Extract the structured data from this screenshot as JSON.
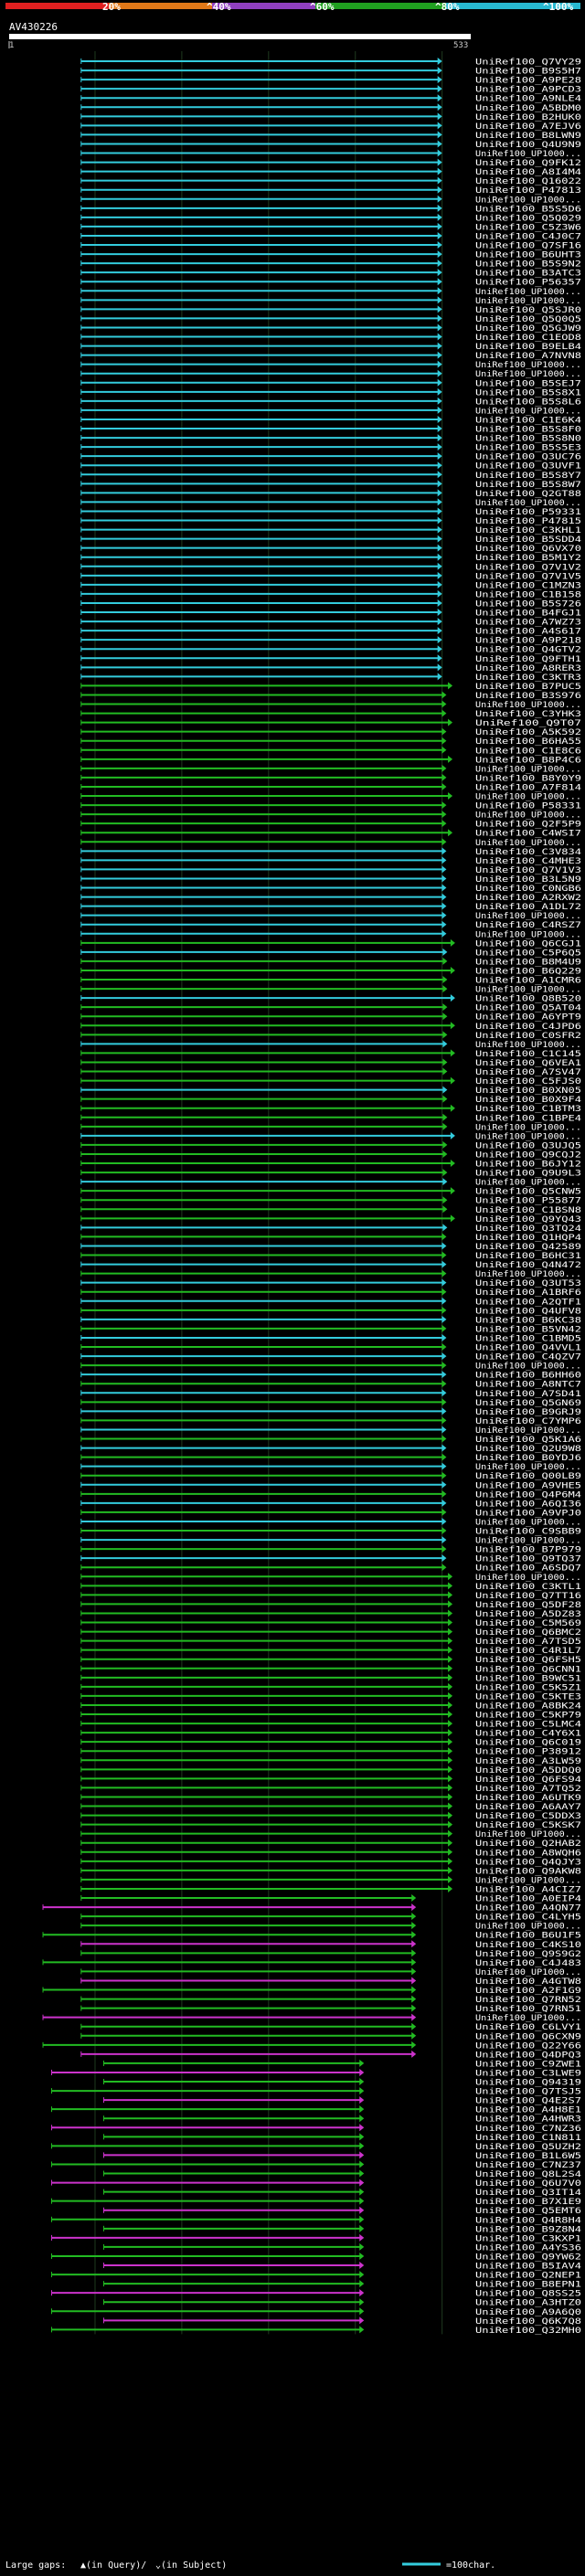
{
  "colors": {
    "bg": "#000000",
    "bin1": "#e02020",
    "bin2": "#e07818",
    "bin3": "#9040c0",
    "bin4": "#20a020",
    "bin5": "#28b8d0",
    "green": "#22bb22",
    "cyan": "#33ccdd",
    "magenta": "#cc33cc",
    "grid": "#1f3a1f",
    "text": "#ffffff",
    "tick": "#cccccc"
  },
  "chart_data": {
    "type": "alignment-overview",
    "title": "AV430226",
    "query_start": "1",
    "query_end": "533",
    "xlim": [
      1,
      533
    ],
    "identity_legend": [
      "20%",
      "^40%",
      "^60%",
      "^80%",
      "^100%"
    ],
    "footer": {
      "gaps_label": "Large gaps: ",
      "gaps_in_query": "▲(in Query)/",
      "gaps_in_subject": "⌄(in Subject)",
      "scale_label": "=100char."
    },
    "labels": [
      "UniRef100_Q7VY29",
      "UniRef100_B9S5H7",
      "UniRef100_A9PE28",
      "UniRef100_A9PCD3",
      "UniRef100_A9NLE4",
      "UniRef100_A5BDM0",
      "UniRef100_B2HUK0",
      "UniRef100_A7EJV6",
      "UniRef100_B8LWN9",
      "UniRef100_Q4U9N9",
      "UniRef100_UP1000...",
      "UniRef100_Q9FK12",
      "UniRef100_A8I4M4",
      "UniRef100_Q16022",
      "UniRef100_P47813",
      "UniRef100_UP1000...",
      "UniRef100_B5S5D6",
      "UniRef100_Q5Q029",
      "UniRef100_C5Z3W6",
      "UniRef100_C4J0C7",
      "UniRef100_Q7SF16",
      "UniRef100_B6UHT3",
      "UniRef100_B5S9N2",
      "UniRef100_B3ATC3",
      "UniRef100_P56357",
      "UniRef100_UP1000...",
      "UniRef100_UP1000...",
      "UniRef100_Q5SJR0",
      "UniRef100_Q5Q0Q5",
      "UniRef100_Q5GJW9",
      "UniRef100_C1EOD8",
      "UniRef100_B9ELB4",
      "UniRef100_A7NVN8",
      "UniRef100_UP1000...",
      "UniRef100_UP1000...",
      "UniRef100_B5SEJ7",
      "UniRef100_B5S8X1",
      "UniRef100_B5S8L6",
      "UniRef100_UP1000...",
      "UniRef100_C1E6K4",
      "UniRef100_B5S8F0",
      "UniRef100_B5S8N0",
      "UniRef100_B5S5E3",
      "UniRef100_Q3UC76",
      "UniRef100_Q3UVF1",
      "UniRef100_B5S8Y7",
      "UniRef100_B5S8W7",
      "UniRef100_Q2GT88",
      "UniRef100_UP1000...",
      "UniRef100_P59331",
      "UniRef100_P47815",
      "UniRef100_C3KHL1",
      "UniRef100_B5SDD4",
      "UniRef100_Q6VX70",
      "UniRef100_B5M1Y2",
      "UniRef100_Q7V1V2",
      "UniRef100_Q7V1V5",
      "UniRef100_C1MZN3",
      "UniRef100_C1B158",
      "UniRef100_B5S726",
      "UniRef100_B4FGJ1",
      "UniRef100_A7WZ73",
      "UniRef100_A4S617",
      "UniRef100_A9P218",
      "UniRef100_Q4GTV2",
      "UniRef100_Q9FTH1",
      "UniRef100_A8RER3",
      "UniRef100_C3KTR3",
      "UniRef100_B7PUC5",
      "UniRef100_B3S976",
      "UniRef100_UP1000...",
      "UniRef100_C3YHK3",
      "UniRef100_Q9T07",
      "UniRef100_A5K592",
      "UniRef100_B6HA55",
      "UniRef100_C1E8C6",
      "UniRef100_B8P4C6",
      "UniRef100_UP1000...",
      "UniRef100_B8Y0Y9",
      "UniRef100_A7F814",
      "UniRef100_UP1000...",
      "UniRef100_P58331",
      "UniRef100_UP1000...",
      "UniRef100_Q2F5P9",
      "UniRef100_C4WSI7",
      "UniRef100_UP1000...",
      "UniRef100_C3V834",
      "UniRef100_C4MHE3",
      "UniRef100_Q7V1V3",
      "UniRef100_B3L5N9",
      "UniRef100_C0NGB6",
      "UniRef100_A2RXW2",
      "UniRef100_A1DL72",
      "UniRef100_UP1000...",
      "UniRef100_C4RSZ7",
      "UniRef100_UP1000...",
      "UniRef100_Q6CGJ1",
      "UniRef100_C5P6Q5",
      "UniRef100_B8M4U9",
      "UniRef100_B6Q229",
      "UniRef100_A1CMR6",
      "UniRef100_UP1000...",
      "UniRef100_Q8B520",
      "UniRef100_Q5AT04",
      "UniRef100_A6YPT9",
      "UniRef100_C4JPD6",
      "UniRef100_C0SFR2",
      "UniRef100_UP1000...",
      "UniRef100_C1C145",
      "UniRef100_Q6VEA1",
      "UniRef100_A7SV47",
      "UniRef100_C5FJS0",
      "UniRef100_B0XN05",
      "UniRef100_B0X9F4",
      "UniRef100_C1BTM3",
      "UniRef100_C1BPE4",
      "UniRef100_UP1000...",
      "UniRef100_UP1000...",
      "UniRef100_Q3UJQ5",
      "UniRef100_Q9CQJ2",
      "UniRef100_B6JY12",
      "UniRef100_Q9U9L3",
      "UniRef100_UP1000...",
      "UniRef100_Q5CNW5",
      "UniRef100_P55877",
      "UniRef100_C1BSN8",
      "UniRef100_Q9YQ43",
      "UniRef100_Q3TQ24",
      "UniRef100_Q1HQP4",
      "UniRef100_Q42589",
      "UniRef100_B6HC31",
      "UniRef100_Q4N472",
      "UniRef100_UP1000...",
      "UniRef100_Q3UT53",
      "UniRef100_A1BRF6",
      "UniRef100_A2QTF1",
      "UniRef100_Q4UFV8",
      "UniRef100_B6KC38",
      "UniRef100_B5VN42",
      "UniRef100_C1BMD5",
      "UniRef100_Q4VVL1",
      "UniRef100_C4QZV7",
      "UniRef100_UP1000...",
      "UniRef100_B6HH60",
      "UniRef100_A8NTC7",
      "UniRef100_A7SD41",
      "UniRef100_Q5GN69",
      "UniRef100_B9GRJ9",
      "UniRef100_C7YMP6",
      "UniRef100_UP1000...",
      "UniRef100_Q5K1A6",
      "UniRef100_Q2U9W8",
      "UniRef100_B0YDJ6",
      "UniRef100_UP1000...",
      "UniRef100_Q00LB9",
      "UniRef100_A9VHE5",
      "UniRef100_Q4P6M4",
      "UniRef100_A6QI36",
      "UniRef100_A9VPJ0",
      "UniRef100_UP1000...",
      "UniRef100_C9SBB9",
      "UniRef100_UP1000...",
      "UniRef100_B7P979",
      "UniRef100_Q9TQ37",
      "UniRef100_A6SDQ7",
      "UniRef100_UP1000...",
      "UniRef100_C3KTL1",
      "UniRef100_Q7TT16",
      "UniRef100_Q5DF28",
      "UniRef100_A5DZ83",
      "UniRef100_C5M569",
      "UniRef100_Q6BMC2",
      "UniRef100_A7TSD5",
      "UniRef100_C4R1L7",
      "UniRef100_Q6FSH5",
      "UniRef100_Q6CNN1",
      "UniRef100_B9WC51",
      "UniRef100_C5K5Z1",
      "UniRef100_C5KTE3",
      "UniRef100_A8BK24",
      "UniRef100_C5KP79",
      "UniRef100_C5LMC4",
      "UniRef100_C4Y6X1",
      "UniRef100_Q6C019",
      "UniRef100_P38912",
      "UniRef100_A3LW59",
      "UniRef100_A5DDQ0",
      "UniRef100_Q6FS94",
      "UniRef100_A7TQ52",
      "UniRef100_A6UTK9",
      "UniRef100_A6AAY7",
      "UniRef100_C5DDX3",
      "UniRef100_C5KSK7",
      "UniRef100_UP1000...",
      "UniRef100_Q2HAB2",
      "UniRef100_A8WQH6",
      "UniRef100_Q4QJY3",
      "UniRef100_Q9AKW8",
      "UniRef100_UP1000...",
      "UniRef100_A4CIZ7",
      "UniRef100_A0EIP4",
      "UniRef100_A4QN77",
      "UniRef100_C4LYH5",
      "UniRef100_UP1000...",
      "UniRef100_B6U1F5",
      "UniRef100_C4KS10",
      "UniRef100_Q9S9G2",
      "UniRef100_C4J483",
      "UniRef100_UP1000...",
      "UniRef100_A4GTW8",
      "UniRef100_A2F1G9",
      "UniRef100_Q7RN52",
      "UniRef100_Q7RN51",
      "UniRef100_UP1000...",
      "UniRef100_C6LVY1",
      "UniRef100_Q6CXN9",
      "UniRef100_Q22Y66",
      "UniRef100_Q4DPQ3",
      "UniRef100_C9ZWE1",
      "UniRef100_C3LWE9",
      "UniRef100_Q94319",
      "UniRef100_Q7TSJ5",
      "UniRef100_Q4E2S7",
      "UniRef100_A4H8E1",
      "UniRef100_A4HWR3",
      "UniRef100_C7NZ36",
      "UniRef100_C1N811",
      "UniRef100_Q5UZH2",
      "UniRef100_B1L6W5",
      "UniRef100_C7NZ37",
      "UniRef100_Q8L2S4",
      "UniRef100_Q6U7V0",
      "UniRef100_Q3IT14",
      "UniRef100_B7X1E9",
      "UniRef100_Q5EMT6",
      "UniRef100_Q4R8H4",
      "UniRef100_B9Z8N4",
      "UniRef100_C3KXP1",
      "UniRef100_A4YS36",
      "UniRef100_Q9YW62",
      "UniRef100_B5IAV4",
      "UniRef100_Q2NEP1",
      "UniRef100_B8EPN1",
      "UniRef100_Q8SS25",
      "UniRef100_A3HTZ0",
      "UniRef100_A9A6Q0",
      "UniRef100_Q6K7Q8",
      "UniRef100_Q32MH0"
    ]
  }
}
